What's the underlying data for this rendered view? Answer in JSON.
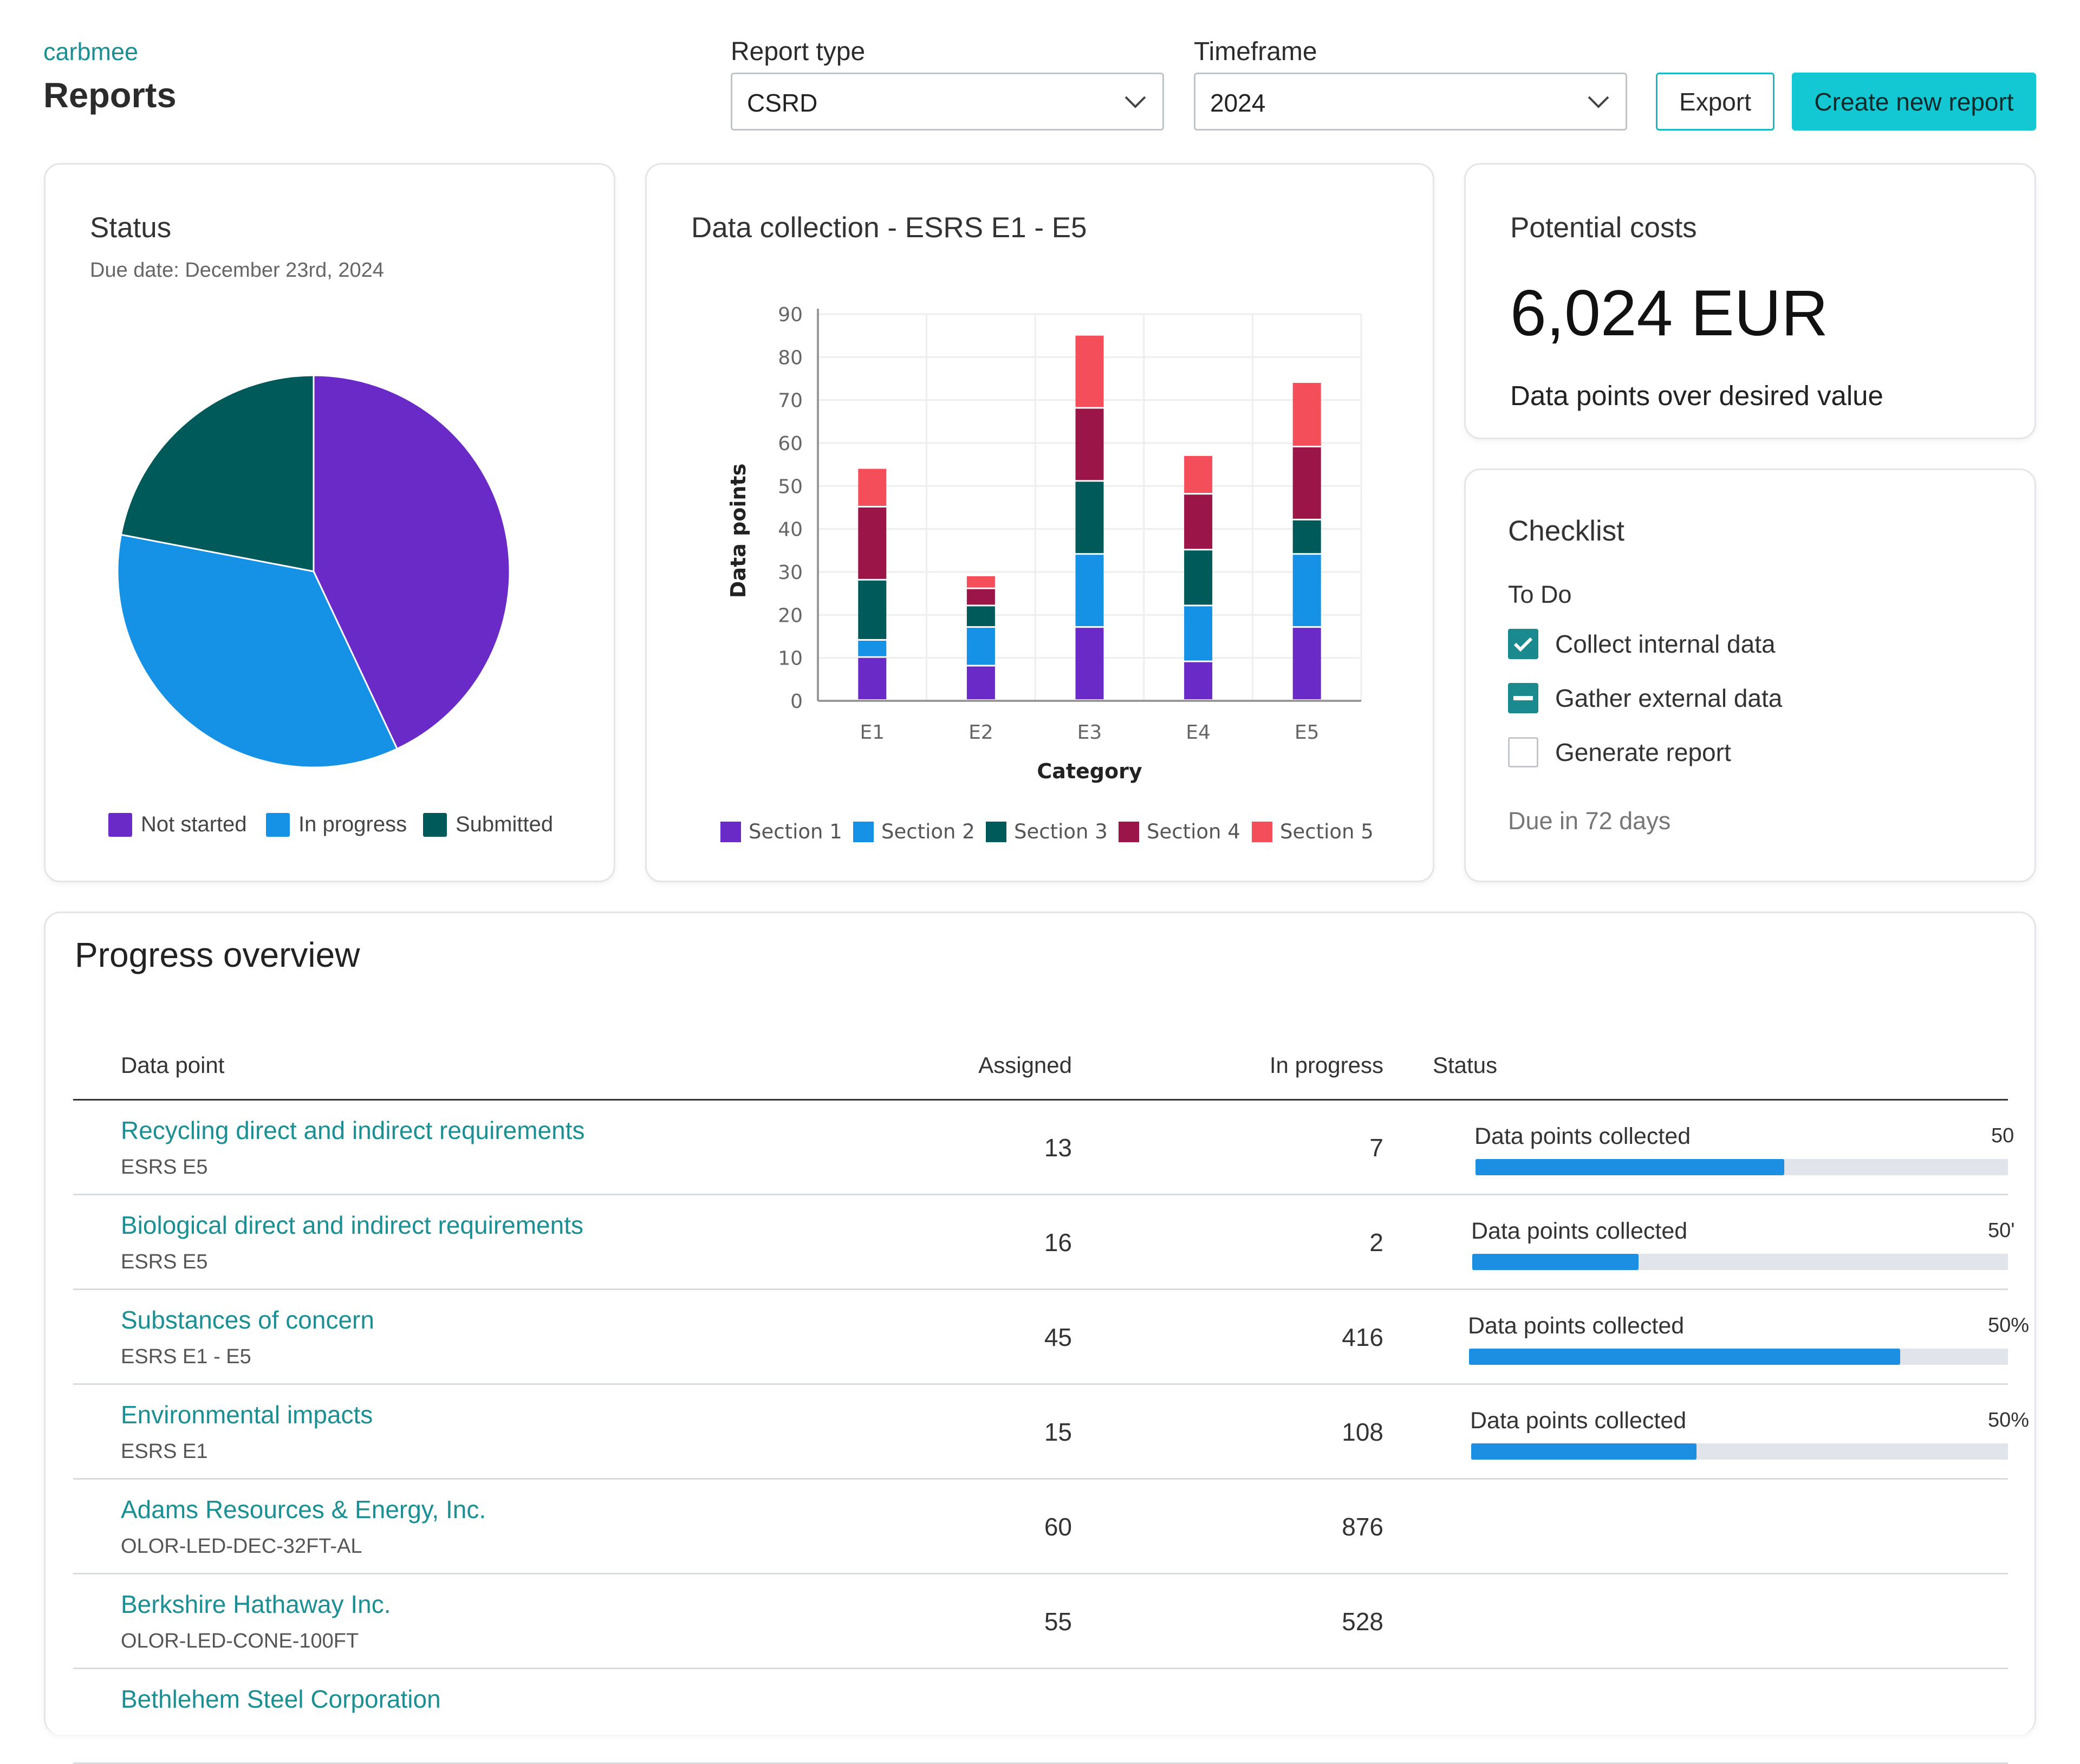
{
  "header": {
    "brand": "carbmee",
    "title": "Reports",
    "report_type_label": "Report type",
    "report_type_value": "CSRD",
    "timeframe_label": "Timeframe",
    "timeframe_value": "2024",
    "export_label": "Export",
    "create_label": "Create new report"
  },
  "status_card": {
    "title": "Status",
    "due": "Due date: December 23rd, 2024",
    "slices": [
      {
        "label": "Not started",
        "value": 43,
        "color": "#6a2ac7"
      },
      {
        "label": "In progress",
        "value": 35,
        "color": "#1592e6"
      },
      {
        "label": "Submitted",
        "value": 22,
        "color": "#005a5a"
      }
    ]
  },
  "data_collection": {
    "title": "Data collection - ESRS E1 - E5"
  },
  "chart_data": {
    "type": "bar",
    "stacked": true,
    "ylabel": "Data points",
    "xlabel": "Category",
    "ylim": [
      0,
      90
    ],
    "yticks": [
      "0",
      "10",
      "20",
      "30",
      "40",
      "50",
      "60",
      "70",
      "80",
      "90"
    ],
    "categories": [
      "E1",
      "E2",
      "E3",
      "E4",
      "E5"
    ],
    "grid": true,
    "legend": "bottom",
    "series": [
      {
        "name": "Section 1",
        "color": "#6a2ac7",
        "values": [
          10,
          8,
          17,
          9,
          17
        ]
      },
      {
        "name": "Section 2",
        "color": "#1592e6",
        "values": [
          4,
          9,
          17,
          13,
          17
        ]
      },
      {
        "name": "Section 3",
        "color": "#005a5a",
        "values": [
          14,
          5,
          17,
          13,
          8
        ]
      },
      {
        "name": "Section 4",
        "color": "#9b1548",
        "values": [
          17,
          4,
          17,
          13,
          17
        ]
      },
      {
        "name": "Section 5",
        "color": "#f54e5b",
        "values": [
          9,
          3,
          17,
          9,
          15
        ]
      }
    ]
  },
  "costs": {
    "title": "Potential costs",
    "amount": "6,024 EUR",
    "subtitle": "Data points over desired value"
  },
  "checklist": {
    "title": "Checklist",
    "section": "To Do",
    "items": [
      {
        "label": "Collect internal data",
        "state": "checked"
      },
      {
        "label": "Gather external data",
        "state": "indeterminate"
      },
      {
        "label": "Generate report",
        "state": "unchecked"
      }
    ],
    "due": "Due in 72 days"
  },
  "progress": {
    "title": "Progress overview",
    "columns": {
      "data_point": "Data point",
      "assigned": "Assigned",
      "in_progress": "In progress",
      "status": "Status"
    },
    "rows": [
      {
        "name": "Recycling direct and indirect requirements",
        "sub": "ESRS E5",
        "assigned": "13",
        "in_progress": "7",
        "status_label": "Data points collected",
        "pct_text": "50",
        "fill": 0.58
      },
      {
        "name": "Biological direct and indirect requirements",
        "sub": "ESRS E5",
        "assigned": "16",
        "in_progress": "2",
        "status_label": "Data points collected",
        "pct_text": "50'",
        "fill": 0.31
      },
      {
        "name": "Substances of concern",
        "sub": "ESRS E1 - E5",
        "assigned": "45",
        "in_progress": "416",
        "status_label": "Data points collected",
        "pct_text": "50%",
        "fill": 0.8
      },
      {
        "name": "Environmental impacts",
        "sub": "ESRS E1",
        "assigned": "15",
        "in_progress": "108",
        "status_label": "Data points collected",
        "pct_text": "50%",
        "fill": 0.42
      },
      {
        "name": "Adams Resources & Energy, Inc.",
        "sub": "OLOR-LED-DEC-32FT-AL",
        "assigned": "60",
        "in_progress": "876"
      },
      {
        "name": "Berkshire Hathaway Inc.",
        "sub": "OLOR-LED-CONE-100FT",
        "assigned": "55",
        "in_progress": "528"
      },
      {
        "name": "Bethlehem Steel Corporation",
        "sub": "",
        "assigned": "",
        "in_progress": ""
      }
    ]
  }
}
